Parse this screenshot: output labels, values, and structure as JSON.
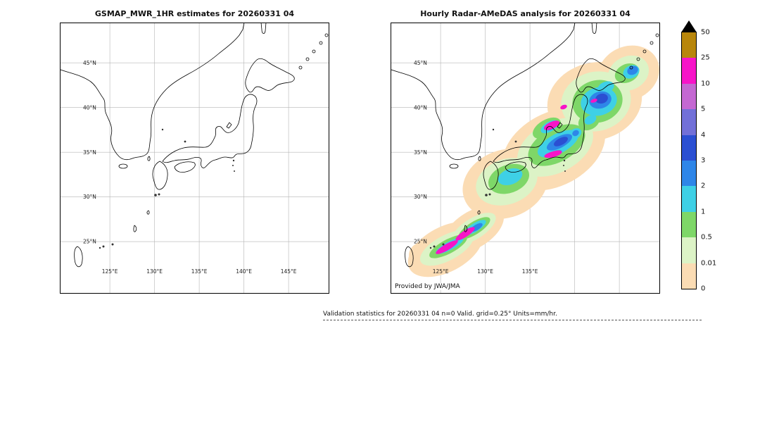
{
  "panels": {
    "left": {
      "title": "GSMAP_MWR_1HR estimates for 20260331 04",
      "lat_ticks": [
        "45°N",
        "40°N",
        "35°N",
        "30°N",
        "25°N"
      ],
      "lon_ticks": [
        "125°E",
        "130°E",
        "135°E",
        "140°E",
        "145°E"
      ]
    },
    "right": {
      "title": "Hourly Radar-AMeDAS analysis for 20260331 04",
      "lat_ticks": [
        "45°N",
        "40°N",
        "35°N",
        "30°N",
        "25°N"
      ],
      "lon_ticks": [
        "125°E",
        "130°E",
        "135°E"
      ],
      "attribution": "Provided by JWA/JMA"
    }
  },
  "colorbar": {
    "overflow_triangle_color": "#000000",
    "tick_labels_top_to_bottom": [
      "50",
      "25",
      "10",
      "5",
      "4",
      "3",
      "2",
      "1",
      "0.5",
      "0.01",
      "0"
    ],
    "segments_top_to_bottom": [
      {
        "range": "25-50",
        "color": "#b8860b"
      },
      {
        "range": "10-25",
        "color": "#f714c8"
      },
      {
        "range": "5-10",
        "color": "#c468d2"
      },
      {
        "range": "4-5",
        "color": "#7270d8"
      },
      {
        "range": "3-4",
        "color": "#2b4fd2"
      },
      {
        "range": "2-3",
        "color": "#2e86e8"
      },
      {
        "range": "1-2",
        "color": "#3ed0e6"
      },
      {
        "range": "0.5-1",
        "color": "#7ed768"
      },
      {
        "range": "0.01-0.5",
        "color": "#dcf3c6"
      },
      {
        "range": "0-0.01",
        "color": "#fbdcb4"
      }
    ]
  },
  "footer": {
    "validation_text": "Validation statistics for 20260331 04  n=0 Valid. grid=0.25° Units=mm/hr."
  },
  "chart_data": {
    "type": "heatmap",
    "panels": [
      {
        "title": "GSMAP_MWR_1HR estimates for 20260331 04",
        "content": "blank basemap of Japan region, no precipitation estimates plotted (n=0)"
      },
      {
        "title": "Hourly Radar-AMeDAS analysis for 20260331 04",
        "content": "precipitation band along Japanese archipelago from Okinawa chain to Hokkaido; magenta cores (10-25 mm/hr) over Okinawa islands, Kinki/Shikoku and central Honshu; blue/cyan (1-5 mm/hr) over Tohoku and eastern Hokkaido; broad light-rain envelope (0-1 mm/hr)"
      }
    ],
    "colorbar_levels": [
      0,
      0.01,
      0.5,
      1,
      2,
      3,
      4,
      5,
      10,
      25,
      50
    ],
    "units": "mm/hr",
    "lat_range_labels": [
      25,
      45
    ],
    "lon_range_labels": [
      125,
      145
    ]
  }
}
